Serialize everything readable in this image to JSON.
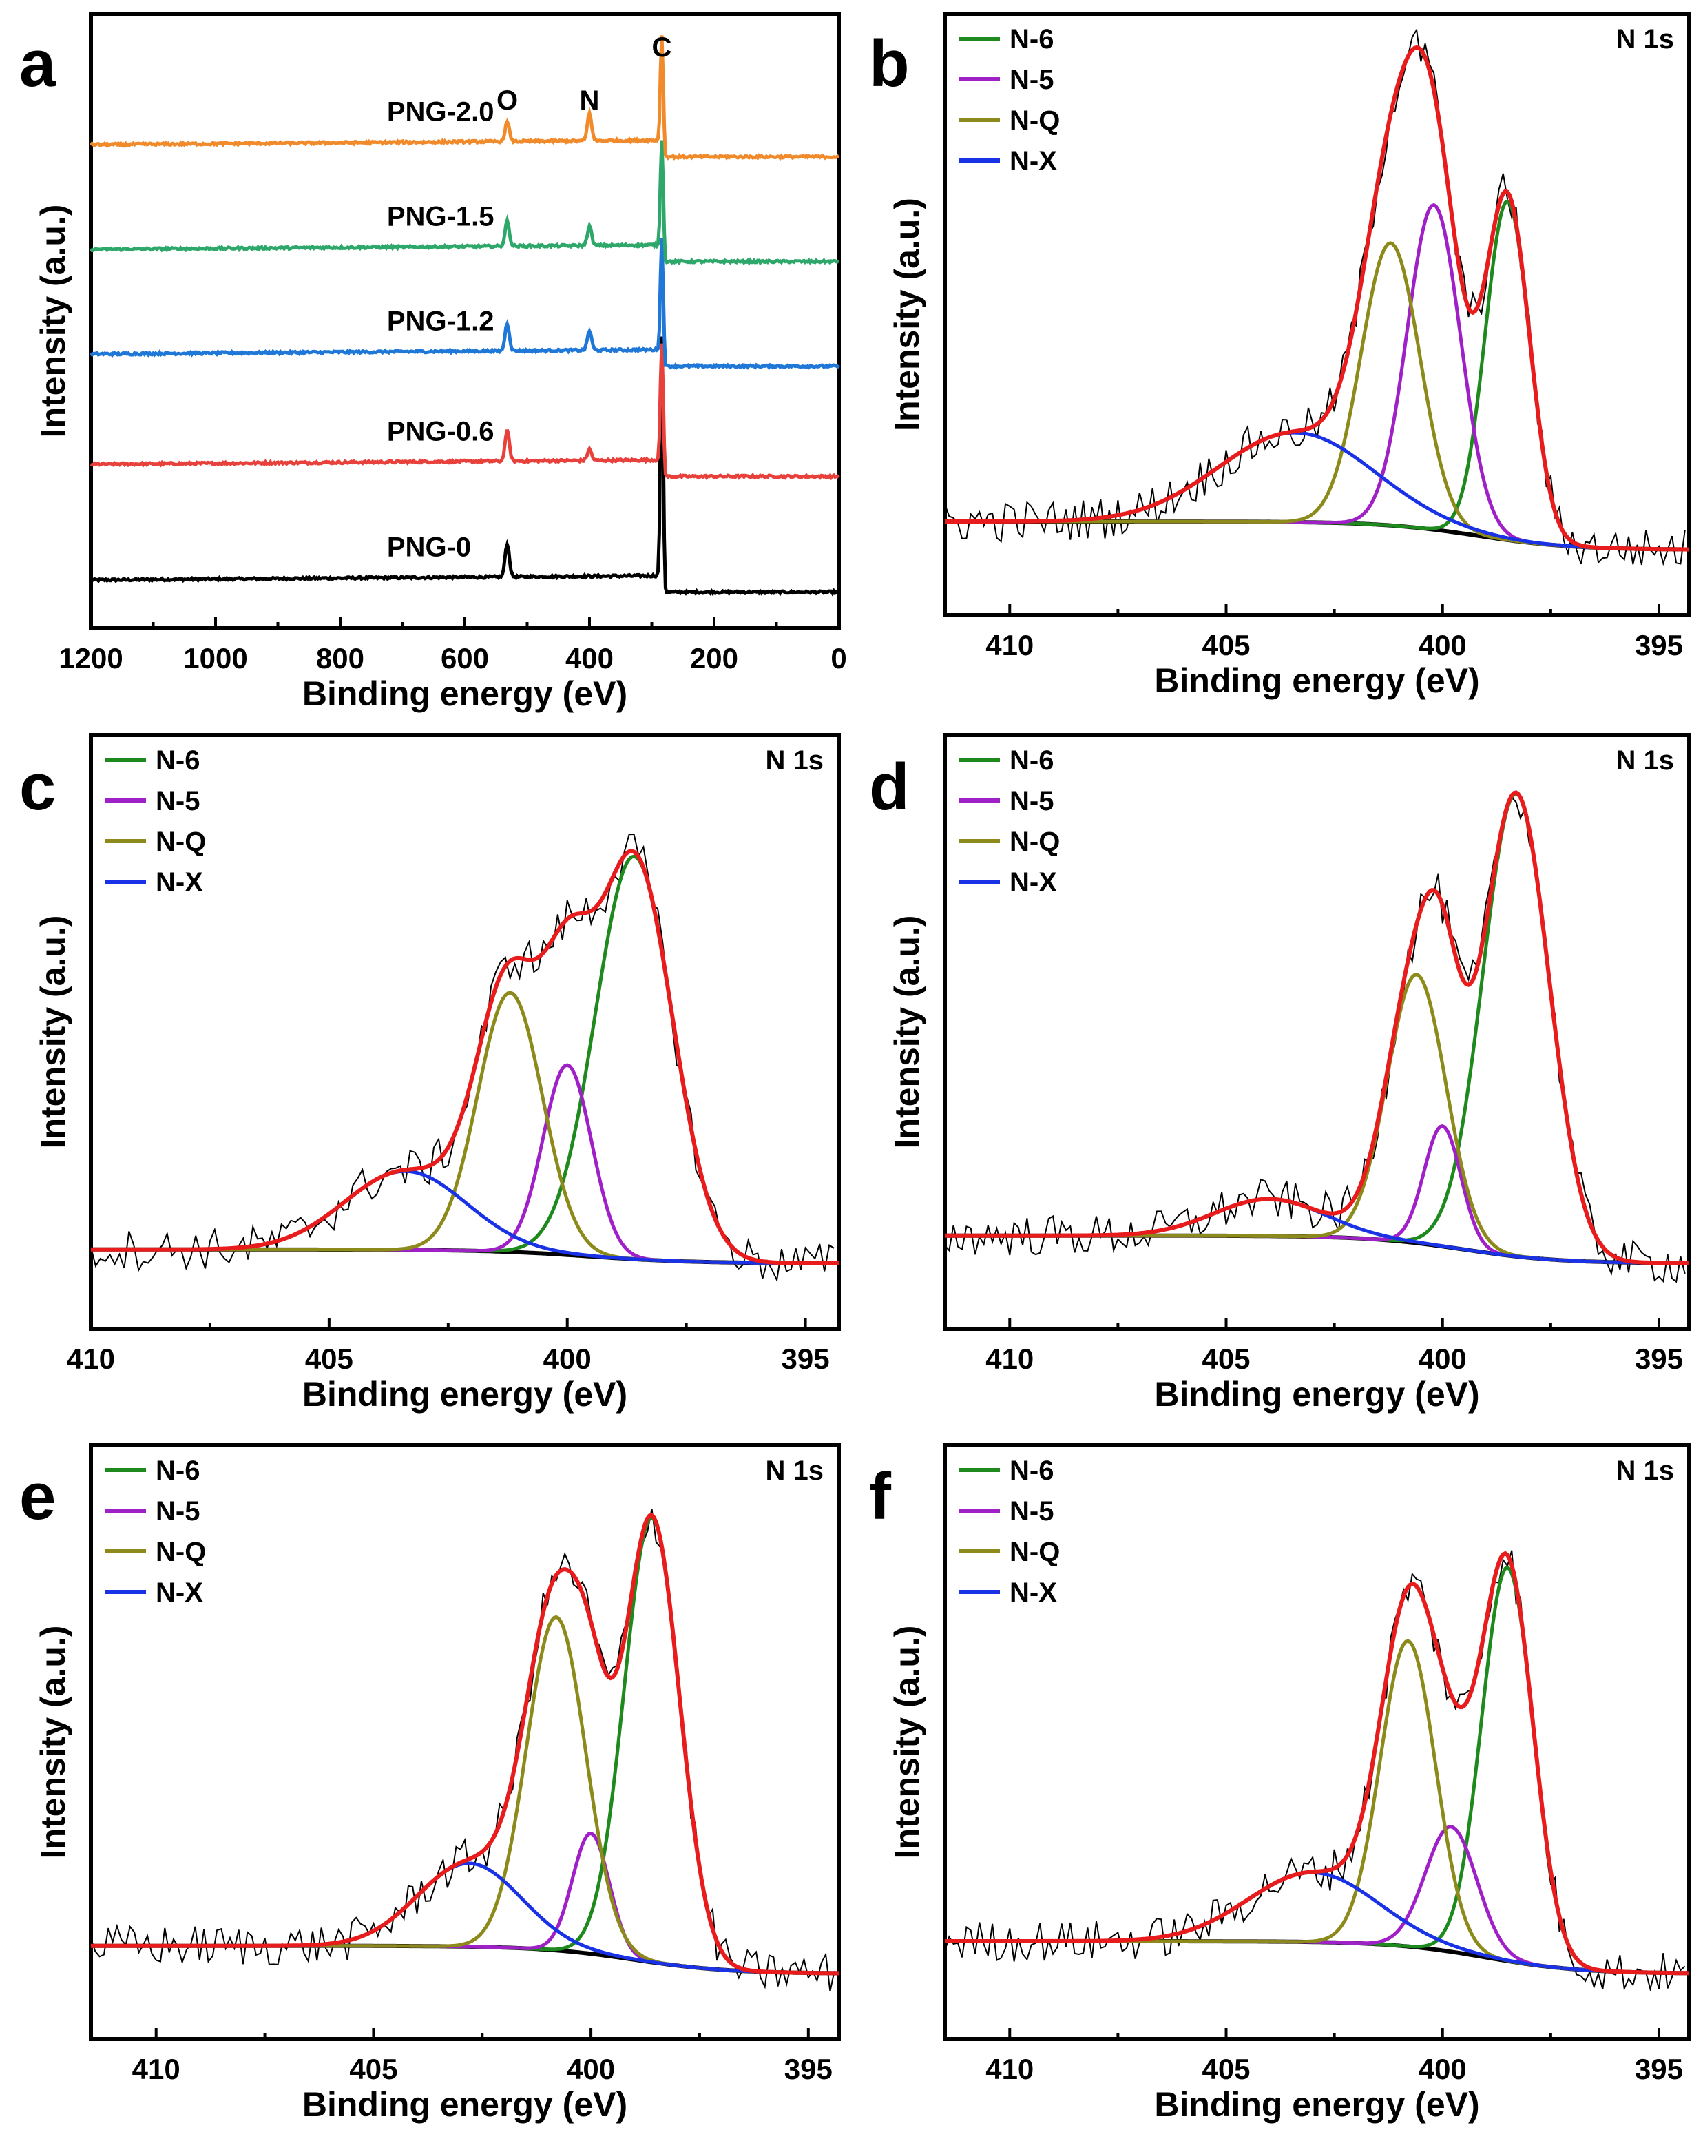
{
  "colors": {
    "N-6": "#1e8a1e",
    "N-5": "#a020c8",
    "N-Q": "#8c8a1a",
    "N-X": "#1a32e6",
    "envelope": "#e81c1c",
    "raw": "#000000",
    "baseline": "#000000",
    "PNG-0": "#000000",
    "PNG-0.6": "#e8413c",
    "PNG-1.2": "#1f77d8",
    "PNG-1.5": "#2ea86a",
    "PNG-2.0": "#f08a2a"
  },
  "chart_data": [
    {
      "panel": "a",
      "type": "line",
      "xlabel": "Binding energy (eV)",
      "ylabel": "Intensity (a.u.)",
      "xlim": [
        1200,
        0
      ],
      "xticks": [
        1200,
        1000,
        800,
        600,
        400,
        200,
        0
      ],
      "peak_labels": [
        {
          "text": "O",
          "x": 532
        },
        {
          "text": "N",
          "x": 400
        },
        {
          "text": "C",
          "x": 284
        }
      ],
      "series": [
        {
          "name": "PNG-0",
          "offset": 0,
          "O_height": 0.6,
          "N_height": 0,
          "C_height": 4.4
        },
        {
          "name": "PNG-0.6",
          "offset": 2.1,
          "O_height": 0.55,
          "N_height": 0.2,
          "C_height": 2.2
        },
        {
          "name": "PNG-1.2",
          "offset": 4.1,
          "O_height": 0.5,
          "N_height": 0.35,
          "C_height": 2.1
        },
        {
          "name": "PNG-1.5",
          "offset": 6.0,
          "O_height": 0.45,
          "N_height": 0.35,
          "C_height": 2.0
        },
        {
          "name": "PNG-2.0",
          "offset": 7.9,
          "O_height": 0.35,
          "N_height": 0.5,
          "C_height": 2.0
        }
      ]
    },
    {
      "panel": "b",
      "type": "line",
      "title": "N 1s",
      "xlabel": "Binding energy (eV)",
      "ylabel": "Intensity (a.u.)",
      "xlim": [
        411.5,
        394.3
      ],
      "xticks": [
        410,
        405,
        400,
        395
      ],
      "legend": [
        "N-6",
        "N-5",
        "N-Q",
        "N-X"
      ],
      "baseline": {
        "hi": 0.06,
        "lo": 0.0,
        "mid": 399.2
      },
      "peaks": [
        {
          "name": "N-6",
          "center": 398.5,
          "height": 0.72,
          "fwhm": 1.2
        },
        {
          "name": "N-5",
          "center": 400.2,
          "height": 0.69,
          "fwhm": 1.45
        },
        {
          "name": "N-Q",
          "center": 401.2,
          "height": 0.6,
          "fwhm": 1.6
        },
        {
          "name": "N-X",
          "center": 403.4,
          "height": 0.19,
          "fwhm": 4.2
        }
      ]
    },
    {
      "panel": "c",
      "type": "line",
      "title": "N 1s",
      "xlabel": "Binding energy (eV)",
      "ylabel": "Intensity (a.u.)",
      "xlim": [
        410,
        394.3
      ],
      "xticks": [
        410,
        405,
        400,
        395
      ],
      "legend": [
        "N-6",
        "N-5",
        "N-Q",
        "N-X"
      ],
      "baseline": {
        "hi": 0.03,
        "lo": 0.0,
        "mid": 399.5
      },
      "peaks": [
        {
          "name": "N-6",
          "center": 398.6,
          "height": 0.87,
          "fwhm": 1.9
        },
        {
          "name": "N-5",
          "center": 400.0,
          "height": 0.41,
          "fwhm": 1.2
        },
        {
          "name": "N-Q",
          "center": 401.2,
          "height": 0.56,
          "fwhm": 1.6
        },
        {
          "name": "N-X",
          "center": 403.4,
          "height": 0.17,
          "fwhm": 3.0
        }
      ]
    },
    {
      "panel": "d",
      "type": "line",
      "title": "N 1s",
      "xlabel": "Binding energy (eV)",
      "ylabel": "Intensity (a.u.)",
      "xlim": [
        411.5,
        394.3
      ],
      "xticks": [
        410,
        405,
        400,
        395
      ],
      "legend": [
        "N-6",
        "N-5",
        "N-Q",
        "N-X"
      ],
      "baseline": {
        "hi": 0.06,
        "lo": 0.0,
        "mid": 399.5
      },
      "peaks": [
        {
          "name": "N-6",
          "center": 398.3,
          "height": 1.0,
          "fwhm": 1.8
        },
        {
          "name": "N-5",
          "center": 400.0,
          "height": 0.26,
          "fwhm": 1.0
        },
        {
          "name": "N-Q",
          "center": 400.6,
          "height": 0.58,
          "fwhm": 1.6
        },
        {
          "name": "N-X",
          "center": 404.0,
          "height": 0.08,
          "fwhm": 3.0
        }
      ]
    },
    {
      "panel": "e",
      "type": "line",
      "title": "N 1s",
      "xlabel": "Binding energy (eV)",
      "ylabel": "Intensity (a.u.)",
      "xlim": [
        411.5,
        394.3
      ],
      "xticks": [
        410,
        405,
        400,
        395
      ],
      "legend": [
        "N-6",
        "N-5",
        "N-Q",
        "N-X"
      ],
      "baseline": {
        "hi": 0.06,
        "lo": 0.0,
        "mid": 399.0
      },
      "peaks": [
        {
          "name": "N-6",
          "center": 398.6,
          "height": 0.96,
          "fwhm": 1.5
        },
        {
          "name": "N-5",
          "center": 400.0,
          "height": 0.26,
          "fwhm": 1.0
        },
        {
          "name": "N-Q",
          "center": 400.8,
          "height": 0.72,
          "fwhm": 1.6
        },
        {
          "name": "N-X",
          "center": 402.8,
          "height": 0.18,
          "fwhm": 2.8
        }
      ]
    },
    {
      "panel": "f",
      "type": "line",
      "title": "N 1s",
      "xlabel": "Binding energy (eV)",
      "ylabel": "Intensity (a.u.)",
      "xlim": [
        411.5,
        394.3
      ],
      "xticks": [
        410,
        405,
        400,
        395
      ],
      "legend": [
        "N-6",
        "N-5",
        "N-Q",
        "N-X"
      ],
      "baseline": {
        "hi": 0.07,
        "lo": 0.0,
        "mid": 399.0
      },
      "peaks": [
        {
          "name": "N-6",
          "center": 398.5,
          "height": 0.85,
          "fwhm": 1.4
        },
        {
          "name": "N-5",
          "center": 399.8,
          "height": 0.27,
          "fwhm": 1.4
        },
        {
          "name": "N-Q",
          "center": 400.8,
          "height": 0.66,
          "fwhm": 1.5
        },
        {
          "name": "N-X",
          "center": 403.0,
          "height": 0.15,
          "fwhm": 3.5
        }
      ]
    }
  ]
}
